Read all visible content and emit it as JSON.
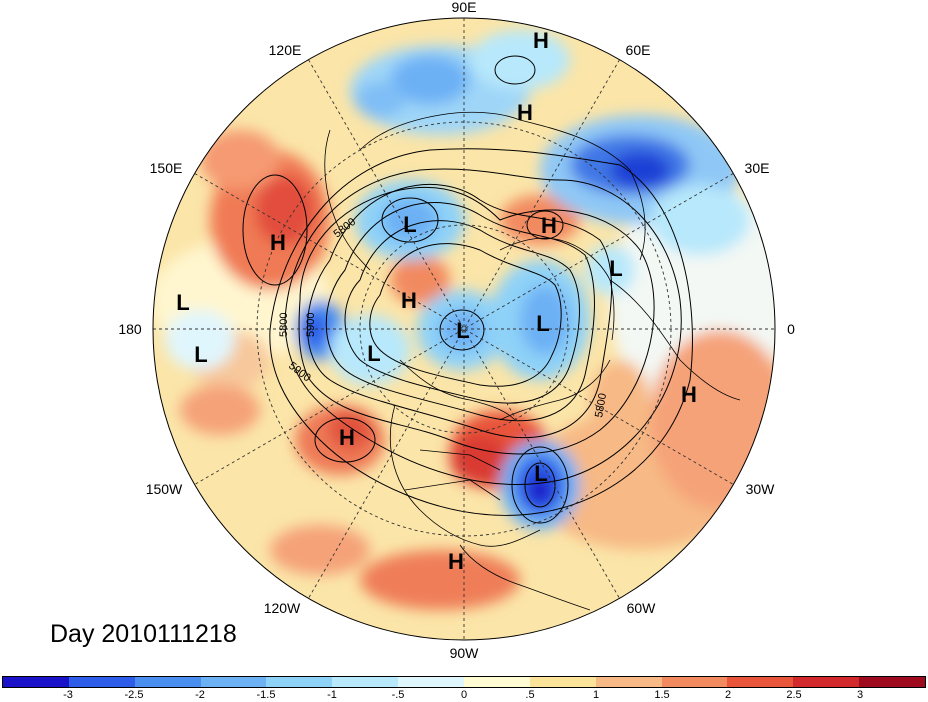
{
  "title": "Day 2010111218",
  "longitude_labels": [
    "90E",
    "60E",
    "30E",
    "0",
    "30W",
    "60W",
    "90W",
    "120W",
    "150W",
    "180",
    "150E",
    "120E"
  ],
  "contour_labels": [
    "5800",
    "5900",
    "5800",
    "5800",
    "5900"
  ],
  "pressure_systems": [
    {
      "type": "H",
      "name": "high-top"
    },
    {
      "type": "H",
      "name": "high-north-siberia"
    },
    {
      "type": "H",
      "name": "high-east-asia"
    },
    {
      "type": "L",
      "name": "low-kamchatka"
    },
    {
      "type": "H",
      "name": "high-barents"
    },
    {
      "type": "L",
      "name": "low-europe"
    },
    {
      "type": "H",
      "name": "high-beaufort"
    },
    {
      "type": "L",
      "name": "low-pole"
    },
    {
      "type": "L",
      "name": "low-greenland"
    },
    {
      "type": "L",
      "name": "low-pacific-1"
    },
    {
      "type": "L",
      "name": "low-pacific-2"
    },
    {
      "type": "L",
      "name": "low-gulf-alaska"
    },
    {
      "type": "H",
      "name": "high-northeast-pacific"
    },
    {
      "type": "L",
      "name": "low-north-atlantic"
    },
    {
      "type": "H",
      "name": "high-west-africa"
    },
    {
      "type": "H",
      "name": "high-central-america"
    }
  ],
  "colorbar": {
    "colors": [
      "#1a12c8",
      "#2c5ce8",
      "#4a8ef0",
      "#6db1f5",
      "#8fd2f8",
      "#b7e8fb",
      "#e0f6fd",
      "#fffbd2",
      "#fbe39a",
      "#f7b985",
      "#f28a60",
      "#e8553b",
      "#d22a2c",
      "#9e0a1e"
    ],
    "tick_labels": [
      "-3",
      "-2.5",
      "-2",
      "-1.5",
      "-1",
      "-.5",
      "0",
      ".5",
      "1",
      "1.5",
      "2",
      "2.5",
      "3"
    ]
  }
}
